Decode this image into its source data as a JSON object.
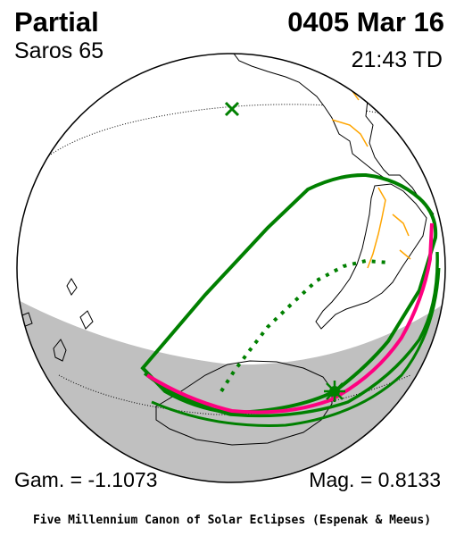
{
  "header": {
    "title": "Partial",
    "date": "0405 Mar 16",
    "saros": "Saros  65",
    "time": "21:43 TD"
  },
  "footer": {
    "gamma": "Gam. = -1.1073",
    "magnitude": "Mag. = 0.8133",
    "credit": "Five Millennium Canon of Solar Eclipses (Espenak & Meeus)"
  },
  "colors": {
    "outline": "#000000",
    "night_shade": "#c0c0c0",
    "coastline": "#000000",
    "borders": "#ffa500",
    "penumbra_limits": "#008000",
    "max_eclipse_limit": "#ff0080",
    "greatest_eclipse_marker": "#008000",
    "subsolar_marker": "#008000"
  },
  "icons": {
    "subsolar_point": "x-mark-icon",
    "greatest_eclipse": "sun-star-icon"
  }
}
